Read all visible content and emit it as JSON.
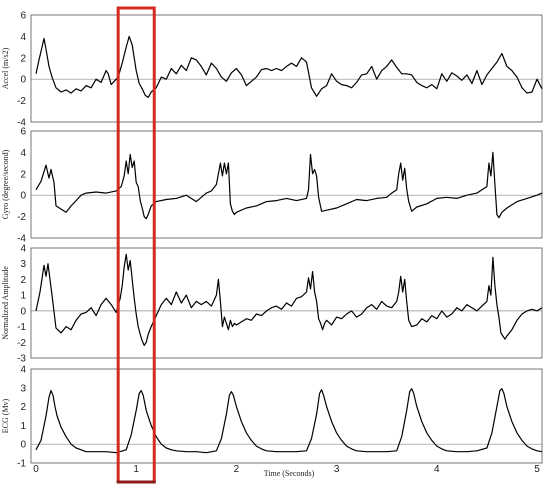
{
  "chart_data": {
    "type": "line",
    "xlabel": "Time (Seconds)",
    "x_ticks": [
      "0",
      "1",
      "2",
      "3",
      "4",
      "5"
    ],
    "xlim": [
      -0.05,
      5.05
    ],
    "highlight_window": {
      "x_start": 0.82,
      "x_end": 1.18,
      "color": "#d42a1f",
      "edge_color": "#8b1a1a"
    },
    "panels": [
      {
        "ylabel": "Accel (m/s2)",
        "ylim": [
          -4,
          6
        ],
        "y_ticks": [
          "6",
          "4",
          "2",
          "0",
          "-2",
          "-4"
        ],
        "series": {
          "x": [
            0.0,
            0.03,
            0.06,
            0.08,
            0.1,
            0.13,
            0.16,
            0.2,
            0.25,
            0.3,
            0.35,
            0.4,
            0.45,
            0.5,
            0.55,
            0.6,
            0.65,
            0.7,
            0.72,
            0.75,
            0.78,
            0.82,
            0.86,
            0.9,
            0.93,
            0.96,
            0.98,
            1.0,
            1.03,
            1.06,
            1.09,
            1.12,
            1.15,
            1.2,
            1.25,
            1.3,
            1.35,
            1.4,
            1.45,
            1.5,
            1.55,
            1.6,
            1.65,
            1.7,
            1.75,
            1.8,
            1.85,
            1.9,
            1.95,
            2.0,
            2.05,
            2.1,
            2.15,
            2.2,
            2.25,
            2.3,
            2.35,
            2.4,
            2.45,
            2.5,
            2.55,
            2.6,
            2.65,
            2.7,
            2.75,
            2.8,
            2.85,
            2.9,
            2.95,
            3.0,
            3.05,
            3.1,
            3.15,
            3.2,
            3.25,
            3.3,
            3.35,
            3.4,
            3.45,
            3.5,
            3.55,
            3.6,
            3.65,
            3.7,
            3.75,
            3.8,
            3.85,
            3.9,
            3.95,
            4.0,
            4.05,
            4.1,
            4.15,
            4.2,
            4.25,
            4.3,
            4.35,
            4.4,
            4.45,
            4.5,
            4.55,
            4.6,
            4.65,
            4.7,
            4.75,
            4.8,
            4.85,
            4.9,
            4.95,
            5.0,
            5.05
          ],
          "y": [
            0.5,
            1.8,
            3.0,
            3.8,
            2.8,
            1.2,
            0.2,
            -0.8,
            -1.2,
            -1.0,
            -1.3,
            -0.9,
            -1.1,
            -0.6,
            -0.8,
            0.0,
            -0.3,
            0.8,
            0.5,
            -0.5,
            -0.2,
            0.2,
            1.5,
            3.0,
            4.0,
            3.2,
            2.0,
            0.8,
            -0.4,
            -0.9,
            -1.5,
            -1.7,
            -1.2,
            -0.8,
            0.2,
            0.0,
            1.0,
            0.5,
            1.3,
            0.8,
            2.0,
            1.8,
            1.2,
            0.4,
            1.5,
            1.0,
            0.2,
            -0.2,
            0.6,
            1.0,
            0.4,
            -0.6,
            -0.2,
            0.2,
            0.9,
            1.0,
            0.8,
            1.0,
            0.8,
            1.2,
            1.5,
            1.2,
            2.0,
            1.6,
            -0.8,
            -1.6,
            -0.9,
            -0.6,
            0.5,
            -0.2,
            -0.5,
            -0.6,
            -0.8,
            -0.3,
            0.4,
            0.5,
            1.2,
            0.0,
            0.8,
            1.2,
            1.8,
            1.1,
            0.5,
            0.5,
            0.4,
            -0.3,
            -0.6,
            -0.8,
            -0.5,
            -0.9,
            0.5,
            -0.2,
            0.6,
            0.3,
            -0.1,
            0.4,
            -0.4,
            0.8,
            -0.5,
            0.4,
            1.0,
            1.6,
            2.4,
            1.2,
            0.8,
            0.2,
            -0.8,
            -1.3,
            -1.2,
            0.0,
            -0.9
          ]
        }
      },
      {
        "ylabel": "Gyro (degree/second)",
        "ylim": [
          -4,
          6
        ],
        "y_ticks": [
          "6",
          "4",
          "2",
          "0",
          "-2",
          "-4"
        ],
        "series": {
          "x": [
            0.0,
            0.05,
            0.08,
            0.1,
            0.13,
            0.15,
            0.18,
            0.2,
            0.25,
            0.3,
            0.35,
            0.4,
            0.45,
            0.5,
            0.6,
            0.7,
            0.8,
            0.85,
            0.88,
            0.9,
            0.92,
            0.94,
            0.96,
            0.98,
            1.0,
            1.02,
            1.04,
            1.06,
            1.08,
            1.1,
            1.12,
            1.15,
            1.2,
            1.3,
            1.4,
            1.5,
            1.6,
            1.7,
            1.75,
            1.8,
            1.82,
            1.84,
            1.86,
            1.88,
            1.9,
            1.92,
            1.94,
            1.96,
            1.98,
            2.0,
            2.1,
            2.2,
            2.3,
            2.4,
            2.5,
            2.6,
            2.7,
            2.72,
            2.74,
            2.76,
            2.78,
            2.8,
            2.82,
            2.85,
            2.9,
            3.0,
            3.1,
            3.2,
            3.3,
            3.4,
            3.5,
            3.55,
            3.6,
            3.62,
            3.64,
            3.66,
            3.68,
            3.7,
            3.72,
            3.75,
            3.8,
            3.9,
            4.0,
            4.1,
            4.2,
            4.3,
            4.4,
            4.45,
            4.5,
            4.52,
            4.54,
            4.56,
            4.58,
            4.6,
            4.62,
            4.65,
            4.7,
            4.8,
            4.9,
            5.0,
            5.05
          ],
          "y": [
            0.5,
            1.3,
            2.2,
            2.8,
            1.6,
            2.4,
            1.2,
            -1.0,
            -1.3,
            -1.6,
            -1.0,
            -0.5,
            0.0,
            0.2,
            0.3,
            0.2,
            0.4,
            0.8,
            1.8,
            3.2,
            2.0,
            3.8,
            2.6,
            3.2,
            1.2,
            0.8,
            -0.5,
            -1.2,
            -2.0,
            -2.2,
            -1.8,
            -1.0,
            -0.6,
            -0.4,
            -0.3,
            0.0,
            -0.6,
            0.2,
            0.4,
            1.0,
            2.0,
            3.0,
            1.8,
            3.0,
            2.0,
            3.0,
            -0.8,
            -1.5,
            -1.8,
            -1.6,
            -1.2,
            -1.0,
            -0.6,
            -0.5,
            -0.3,
            -0.5,
            -0.3,
            0.5,
            3.8,
            2.0,
            2.4,
            1.8,
            -0.2,
            -1.5,
            -1.4,
            -1.2,
            -0.8,
            -0.4,
            -0.5,
            -0.3,
            -0.2,
            0.2,
            0.5,
            2.0,
            3.0,
            1.4,
            2.5,
            0.6,
            -0.6,
            -1.5,
            -1.1,
            -0.8,
            -0.3,
            -0.2,
            -0.3,
            0.0,
            0.2,
            0.5,
            0.8,
            3.0,
            1.8,
            4.0,
            1.0,
            -1.8,
            -2.1,
            -1.6,
            -1.2,
            -0.6,
            -0.3,
            0.0,
            0.2
          ]
        }
      },
      {
        "ylabel": "Normalized Amplitude",
        "ylim": [
          -3,
          4
        ],
        "y_ticks": [
          "4",
          "3",
          "2",
          "1",
          "0",
          "-1",
          "-2",
          "-3"
        ],
        "series": {
          "x": [
            0.0,
            0.04,
            0.08,
            0.1,
            0.12,
            0.14,
            0.16,
            0.2,
            0.25,
            0.3,
            0.35,
            0.4,
            0.45,
            0.5,
            0.55,
            0.6,
            0.65,
            0.7,
            0.75,
            0.8,
            0.84,
            0.86,
            0.88,
            0.9,
            0.92,
            0.94,
            0.96,
            0.98,
            1.0,
            1.02,
            1.04,
            1.06,
            1.08,
            1.1,
            1.12,
            1.15,
            1.2,
            1.25,
            1.3,
            1.35,
            1.4,
            1.45,
            1.5,
            1.55,
            1.6,
            1.65,
            1.7,
            1.75,
            1.8,
            1.82,
            1.84,
            1.86,
            1.88,
            1.9,
            1.92,
            1.94,
            1.96,
            1.98,
            2.0,
            2.05,
            2.1,
            2.15,
            2.2,
            2.25,
            2.3,
            2.35,
            2.4,
            2.45,
            2.5,
            2.55,
            2.6,
            2.65,
            2.7,
            2.72,
            2.74,
            2.76,
            2.78,
            2.8,
            2.82,
            2.84,
            2.86,
            2.88,
            2.9,
            2.95,
            3.0,
            3.05,
            3.1,
            3.15,
            3.2,
            3.25,
            3.3,
            3.35,
            3.4,
            3.45,
            3.5,
            3.55,
            3.6,
            3.62,
            3.64,
            3.66,
            3.68,
            3.7,
            3.72,
            3.75,
            3.8,
            3.85,
            3.9,
            3.95,
            4.0,
            4.05,
            4.1,
            4.15,
            4.2,
            4.25,
            4.3,
            4.35,
            4.4,
            4.45,
            4.5,
            4.52,
            4.54,
            4.56,
            4.58,
            4.6,
            4.62,
            4.64,
            4.66,
            4.68,
            4.7,
            4.75,
            4.8,
            4.85,
            4.9,
            4.95,
            5.0,
            5.05
          ],
          "y": [
            0.0,
            1.2,
            2.9,
            2.2,
            3.0,
            2.0,
            1.0,
            -1.1,
            -1.4,
            -1.0,
            -1.2,
            -0.6,
            -0.2,
            -0.1,
            0.2,
            -0.3,
            0.4,
            0.8,
            0.4,
            -0.1,
            0.8,
            1.6,
            2.8,
            3.6,
            2.6,
            3.2,
            2.0,
            0.8,
            -0.2,
            -1.0,
            -1.5,
            -1.9,
            -2.2,
            -2.0,
            -1.5,
            -1.0,
            -0.3,
            0.4,
            0.8,
            0.4,
            1.2,
            0.5,
            1.0,
            0.2,
            0.6,
            0.4,
            0.6,
            0.3,
            1.0,
            2.0,
            0.6,
            -1.0,
            -0.4,
            -0.8,
            -1.2,
            -0.6,
            -1.0,
            -0.8,
            -0.9,
            -0.7,
            -0.5,
            -0.6,
            -0.2,
            -0.3,
            0.0,
            0.2,
            0.3,
            0.1,
            0.5,
            0.3,
            0.8,
            0.9,
            1.2,
            2.1,
            1.4,
            2.5,
            1.2,
            0.6,
            -0.5,
            -0.8,
            -1.2,
            -0.8,
            -0.6,
            -0.9,
            -0.4,
            -0.5,
            -0.2,
            0.0,
            -0.4,
            -0.2,
            0.2,
            0.4,
            0.1,
            0.6,
            0.3,
            0.2,
            0.6,
            1.2,
            2.2,
            1.2,
            2.0,
            0.6,
            -0.6,
            -1.0,
            -0.9,
            -0.5,
            -0.7,
            -0.3,
            -0.5,
            0.0,
            -0.4,
            -0.2,
            0.2,
            0.0,
            0.4,
            0.2,
            0.0,
            0.3,
            0.6,
            1.6,
            1.0,
            3.4,
            1.6,
            0.4,
            -0.4,
            -1.4,
            -1.6,
            -1.8,
            -1.6,
            -1.2,
            -0.6,
            -0.2,
            0.0,
            0.1,
            0.0,
            0.2
          ]
        }
      },
      {
        "ylabel": "ECG (Mv)",
        "ylim": [
          -1,
          4
        ],
        "y_ticks": [
          "4",
          "3",
          "2",
          "1",
          "0",
          "-1"
        ],
        "series": {
          "x": [
            0.0,
            0.05,
            0.1,
            0.13,
            0.15,
            0.17,
            0.19,
            0.21,
            0.25,
            0.3,
            0.35,
            0.4,
            0.45,
            0.5,
            0.6,
            0.7,
            0.8,
            0.9,
            0.95,
            1.0,
            1.03,
            1.05,
            1.07,
            1.1,
            1.15,
            1.2,
            1.25,
            1.3,
            1.35,
            1.4,
            1.5,
            1.6,
            1.7,
            1.8,
            1.85,
            1.9,
            1.93,
            1.95,
            1.97,
            2.0,
            2.05,
            2.1,
            2.15,
            2.2,
            2.25,
            2.3,
            2.4,
            2.5,
            2.6,
            2.7,
            2.75,
            2.8,
            2.83,
            2.85,
            2.87,
            2.9,
            2.95,
            3.0,
            3.05,
            3.1,
            3.15,
            3.2,
            3.3,
            3.4,
            3.5,
            3.6,
            3.65,
            3.7,
            3.73,
            3.75,
            3.77,
            3.8,
            3.85,
            3.9,
            3.95,
            4.0,
            4.05,
            4.1,
            4.2,
            4.3,
            4.4,
            4.5,
            4.55,
            4.6,
            4.63,
            4.65,
            4.67,
            4.7,
            4.75,
            4.8,
            4.85,
            4.9,
            4.95,
            5.0,
            5.05
          ],
          "y": [
            -0.3,
            0.2,
            1.5,
            2.5,
            2.85,
            2.6,
            2.0,
            1.5,
            0.9,
            0.4,
            0.0,
            -0.2,
            -0.3,
            -0.4,
            -0.4,
            -0.4,
            -0.45,
            -0.3,
            0.5,
            1.8,
            2.7,
            2.85,
            2.6,
            1.8,
            1.0,
            0.4,
            0.0,
            -0.2,
            -0.3,
            -0.35,
            -0.4,
            -0.4,
            -0.45,
            -0.35,
            0.3,
            1.6,
            2.6,
            2.8,
            2.6,
            2.0,
            1.2,
            0.6,
            0.2,
            -0.1,
            -0.25,
            -0.35,
            -0.4,
            -0.4,
            -0.4,
            -0.35,
            0.3,
            1.6,
            2.7,
            2.9,
            2.6,
            2.0,
            1.2,
            0.6,
            0.2,
            -0.1,
            -0.25,
            -0.35,
            -0.4,
            -0.4,
            -0.4,
            -0.35,
            0.4,
            1.8,
            2.8,
            2.95,
            2.7,
            2.0,
            1.2,
            0.6,
            0.2,
            -0.1,
            -0.25,
            -0.35,
            -0.4,
            -0.4,
            -0.35,
            -0.2,
            0.6,
            2.0,
            2.85,
            2.95,
            2.7,
            2.0,
            1.2,
            0.6,
            0.2,
            -0.1,
            -0.25,
            -0.35,
            -0.4
          ]
        }
      }
    ]
  }
}
